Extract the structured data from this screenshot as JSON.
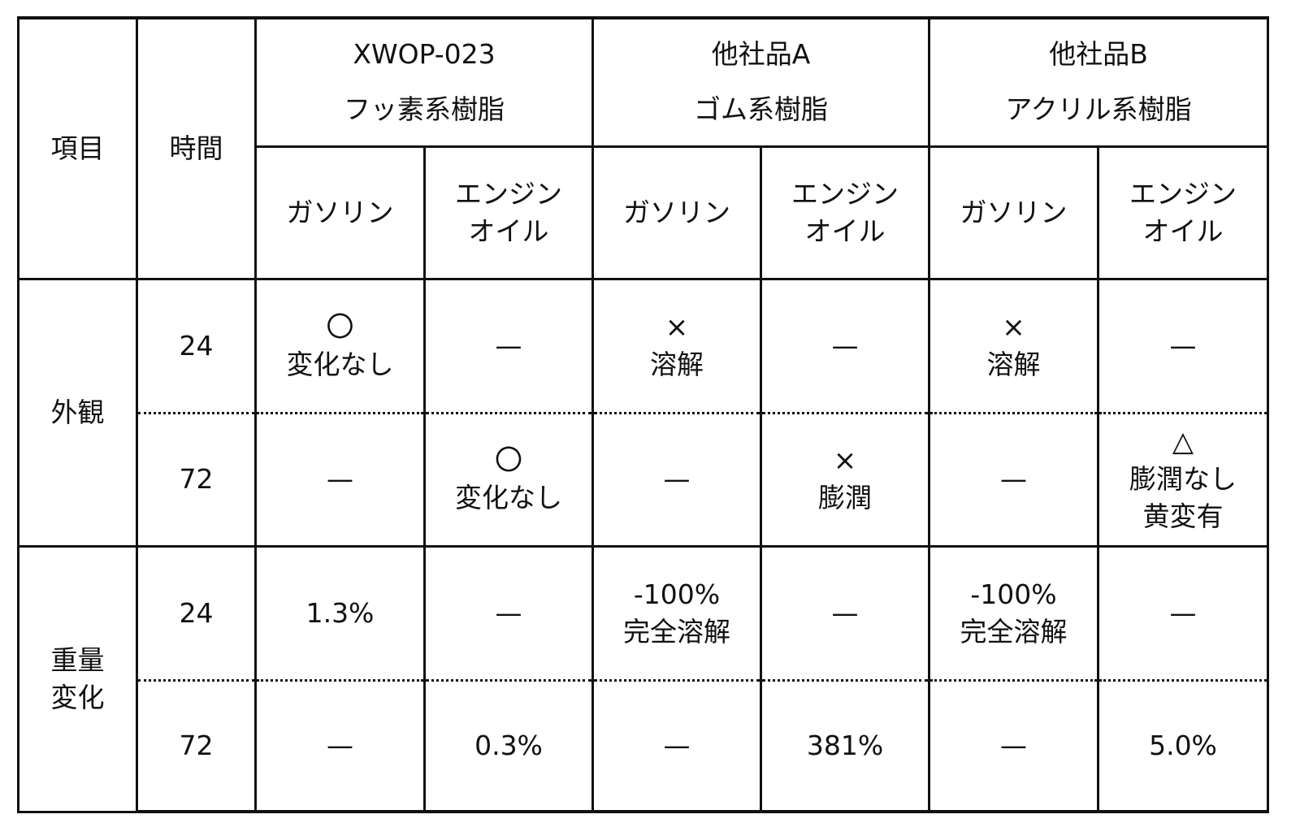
{
  "table": {
    "header": {
      "item": "項目",
      "time": "時間",
      "products": [
        {
          "name": "XWOP-023",
          "type": "フッ素系樹脂"
        },
        {
          "name": "他社品A",
          "type": "ゴム系樹脂"
        },
        {
          "name": "他社品B",
          "type": "アクリル系樹脂"
        }
      ],
      "gasoline": "ガソリン",
      "engine_oil": [
        "エンジン",
        "オイル"
      ]
    },
    "groups": [
      {
        "label": [
          "外観"
        ],
        "rows": [
          {
            "time": "24",
            "cells": [
              [
                "〇",
                "変化なし"
              ],
              [
                "—"
              ],
              [
                "×",
                "溶解"
              ],
              [
                "—"
              ],
              [
                "×",
                "溶解"
              ],
              [
                "—"
              ]
            ]
          },
          {
            "time": "72",
            "cells": [
              [
                "—"
              ],
              [
                "〇",
                "変化なし"
              ],
              [
                "—"
              ],
              [
                "×",
                "膨潤"
              ],
              [
                "—"
              ],
              [
                "△",
                "膨潤なし",
                "黄変有"
              ]
            ]
          }
        ]
      },
      {
        "label": [
          "重量",
          "変化"
        ],
        "rows": [
          {
            "time": "24",
            "cells": [
              [
                "1.3%"
              ],
              [
                "—"
              ],
              [
                "-100%",
                "完全溶解"
              ],
              [
                "—"
              ],
              [
                "-100%",
                "完全溶解"
              ],
              [
                "—"
              ]
            ]
          },
          {
            "time": "72",
            "cells": [
              [
                "—"
              ],
              [
                "0.3%"
              ],
              [
                "—"
              ],
              [
                "381%"
              ],
              [
                "—"
              ],
              [
                "5.0%"
              ]
            ]
          }
        ]
      }
    ]
  }
}
